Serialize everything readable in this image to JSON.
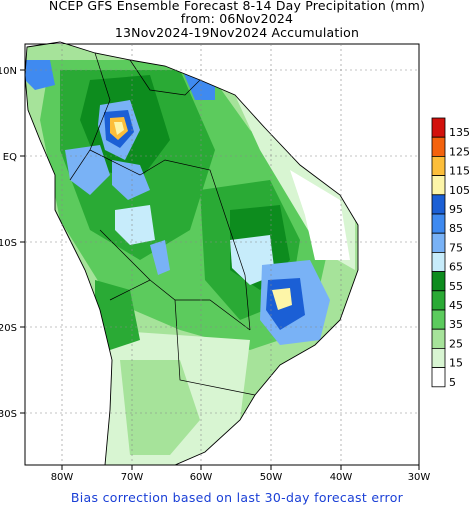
{
  "title": {
    "line1": "NCEP GFS Ensemble Forecast 8-14 Day Precipitation (mm)",
    "line2": "from: 06Nov2024",
    "line3": "13Nov2024-19Nov2024 Accumulation"
  },
  "footer": "Bias correction based on last 30-day forecast error",
  "axes": {
    "x_ticks": [
      "80W",
      "70W",
      "60W",
      "50W",
      "40W",
      "30W"
    ],
    "y_ticks": [
      "10N",
      "EQ",
      "10S",
      "20S",
      "30S"
    ]
  },
  "legend": {
    "entries": [
      {
        "label": "135",
        "color": "#d2110c"
      },
      {
        "label": "125",
        "color": "#f3620d"
      },
      {
        "label": "115",
        "color": "#fcbe3a"
      },
      {
        "label": "105",
        "color": "#fdf5a8"
      },
      {
        "label": "95",
        "color": "#1b5fd5"
      },
      {
        "label": "85",
        "color": "#3f8af0"
      },
      {
        "label": "75",
        "color": "#79b2f6"
      },
      {
        "label": "65",
        "color": "#c7ecfb"
      },
      {
        "label": "55",
        "color": "#0d8c1e"
      },
      {
        "label": "45",
        "color": "#2aaa35"
      },
      {
        "label": "35",
        "color": "#5ccb5d"
      },
      {
        "label": "25",
        "color": "#a6e39a"
      },
      {
        "label": "15",
        "color": "#d8f5d2"
      },
      {
        "label": "5",
        "color": "#ffffff"
      }
    ]
  }
}
